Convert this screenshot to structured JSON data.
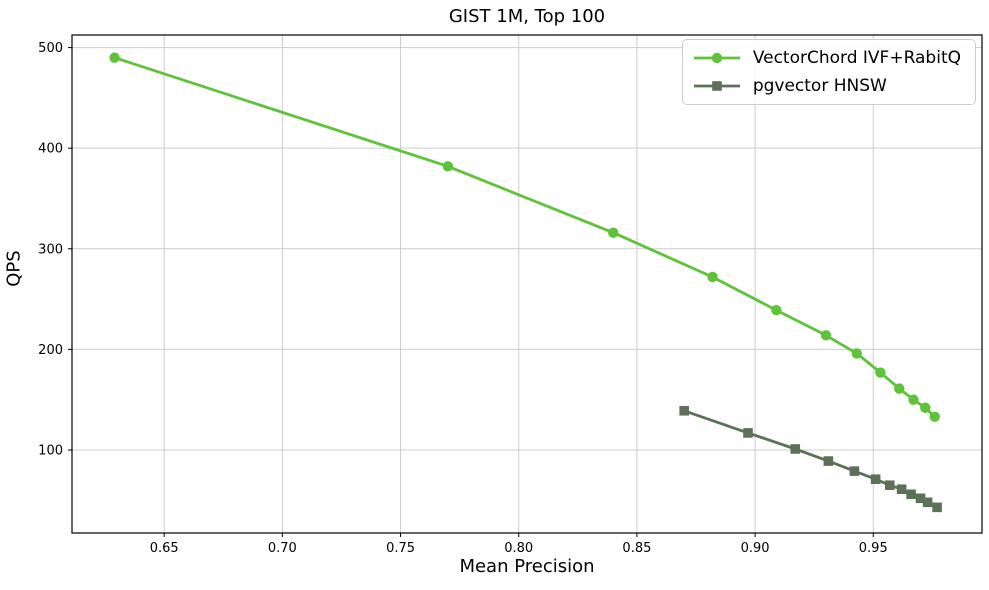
{
  "chart_data": {
    "type": "line",
    "title": "GIST 1M, Top 100",
    "xlabel": "Mean Precision",
    "ylabel": "QPS",
    "xlim": [
      0.611,
      0.996
    ],
    "ylim": [
      17.5,
      512.5
    ],
    "xticks": [
      0.65,
      0.7,
      0.75,
      0.8,
      0.85,
      0.9,
      0.95
    ],
    "yticks": [
      100,
      200,
      300,
      400,
      500
    ],
    "grid": true,
    "grid_color": "#cccccc",
    "spine_color": "#000000",
    "legend_position": "upper right",
    "series": [
      {
        "name": "VectorChord IVF+RabitQ",
        "color": "#5ec339",
        "marker": "circle",
        "points": [
          [
            0.629,
            490
          ],
          [
            0.77,
            382
          ],
          [
            0.84,
            316
          ],
          [
            0.882,
            272
          ],
          [
            0.909,
            239
          ],
          [
            0.93,
            214
          ],
          [
            0.943,
            196
          ],
          [
            0.953,
            177
          ],
          [
            0.961,
            161
          ],
          [
            0.967,
            150
          ],
          [
            0.972,
            142
          ],
          [
            0.976,
            133
          ]
        ]
      },
      {
        "name": "pgvector HNSW",
        "color": "#5c7158",
        "marker": "square",
        "points": [
          [
            0.87,
            139
          ],
          [
            0.897,
            117
          ],
          [
            0.917,
            101
          ],
          [
            0.931,
            89
          ],
          [
            0.942,
            79
          ],
          [
            0.951,
            71
          ],
          [
            0.957,
            65
          ],
          [
            0.962,
            61
          ],
          [
            0.966,
            56
          ],
          [
            0.97,
            52
          ],
          [
            0.973,
            48
          ],
          [
            0.977,
            43
          ]
        ]
      }
    ]
  }
}
